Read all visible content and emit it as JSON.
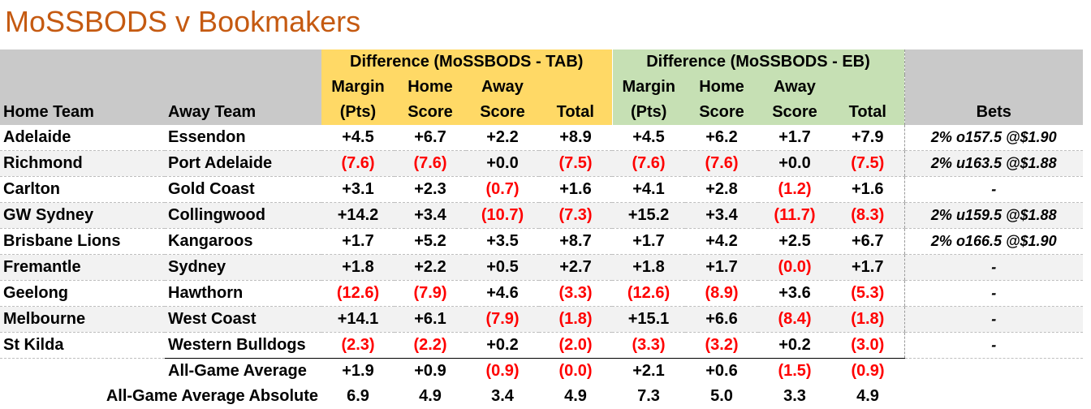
{
  "title": "MoSSBODS v Bookmakers",
  "headers": {
    "tab_group": "Difference (MoSSBODS - TAB)",
    "eb_group": "Difference (MoSSBODS - EB)",
    "home_team": "Home Team",
    "away_team": "Away Team",
    "margin_top": "Margin",
    "margin_bot": "(Pts)",
    "home_top": "Home",
    "home_bot": "Score",
    "away_top": "Away",
    "away_bot": "Score",
    "total": "Total",
    "bets": "Bets"
  },
  "rows": [
    {
      "home": "Adelaide",
      "away": "Essendon",
      "tab": [
        "+4.5",
        "+6.7",
        "+2.2",
        "+8.9"
      ],
      "eb": [
        "+4.5",
        "+6.2",
        "+1.7",
        "+7.9"
      ],
      "bet": "2% o157.5 @$1.90"
    },
    {
      "home": "Richmond",
      "away": "Port Adelaide",
      "tab": [
        "(7.6)",
        "(7.6)",
        "+0.0",
        "(7.5)"
      ],
      "eb": [
        "(7.6)",
        "(7.6)",
        "+0.0",
        "(7.5)"
      ],
      "bet": "2% u163.5 @$1.88"
    },
    {
      "home": "Carlton",
      "away": "Gold Coast",
      "tab": [
        "+3.1",
        "+2.3",
        "(0.7)",
        "+1.6"
      ],
      "eb": [
        "+4.1",
        "+2.8",
        "(1.2)",
        "+1.6"
      ],
      "bet": "-"
    },
    {
      "home": "GW Sydney",
      "away": "Collingwood",
      "tab": [
        "+14.2",
        "+3.4",
        "(10.7)",
        "(7.3)"
      ],
      "eb": [
        "+15.2",
        "+3.4",
        "(11.7)",
        "(8.3)"
      ],
      "bet": "2% u159.5 @$1.88"
    },
    {
      "home": "Brisbane Lions",
      "away": "Kangaroos",
      "tab": [
        "+1.7",
        "+5.2",
        "+3.5",
        "+8.7"
      ],
      "eb": [
        "+1.7",
        "+4.2",
        "+2.5",
        "+6.7"
      ],
      "bet": "2% o166.5 @$1.90"
    },
    {
      "home": "Fremantle",
      "away": "Sydney",
      "tab": [
        "+1.8",
        "+2.2",
        "+0.5",
        "+2.7"
      ],
      "eb": [
        "+1.8",
        "+1.7",
        "(0.0)",
        "+1.7"
      ],
      "bet": "-"
    },
    {
      "home": "Geelong",
      "away": "Hawthorn",
      "tab": [
        "(12.6)",
        "(7.9)",
        "+4.6",
        "(3.3)"
      ],
      "eb": [
        "(12.6)",
        "(8.9)",
        "+3.6",
        "(5.3)"
      ],
      "bet": "-"
    },
    {
      "home": "Melbourne",
      "away": "West Coast",
      "tab": [
        "+14.1",
        "+6.1",
        "(7.9)",
        "(1.8)"
      ],
      "eb": [
        "+15.1",
        "+6.6",
        "(8.4)",
        "(1.8)"
      ],
      "bet": "-"
    },
    {
      "home": "St Kilda",
      "away": "Western Bulldogs",
      "tab": [
        "(2.3)",
        "(2.2)",
        "+0.2",
        "(2.0)"
      ],
      "eb": [
        "(3.3)",
        "(3.2)",
        "+0.2",
        "(3.0)"
      ],
      "bet": "-"
    }
  ],
  "summary": [
    {
      "label": "All-Game Average",
      "tab": [
        "+1.9",
        "+0.9",
        "(0.9)",
        "(0.0)"
      ],
      "eb": [
        "+2.1",
        "+0.6",
        "(1.5)",
        "(0.9)"
      ]
    },
    {
      "label": "All-Game Average Absolute",
      "tab": [
        "6.9",
        "4.9",
        "3.4",
        "4.9"
      ],
      "eb": [
        "7.3",
        "5.0",
        "3.3",
        "4.9"
      ]
    }
  ]
}
